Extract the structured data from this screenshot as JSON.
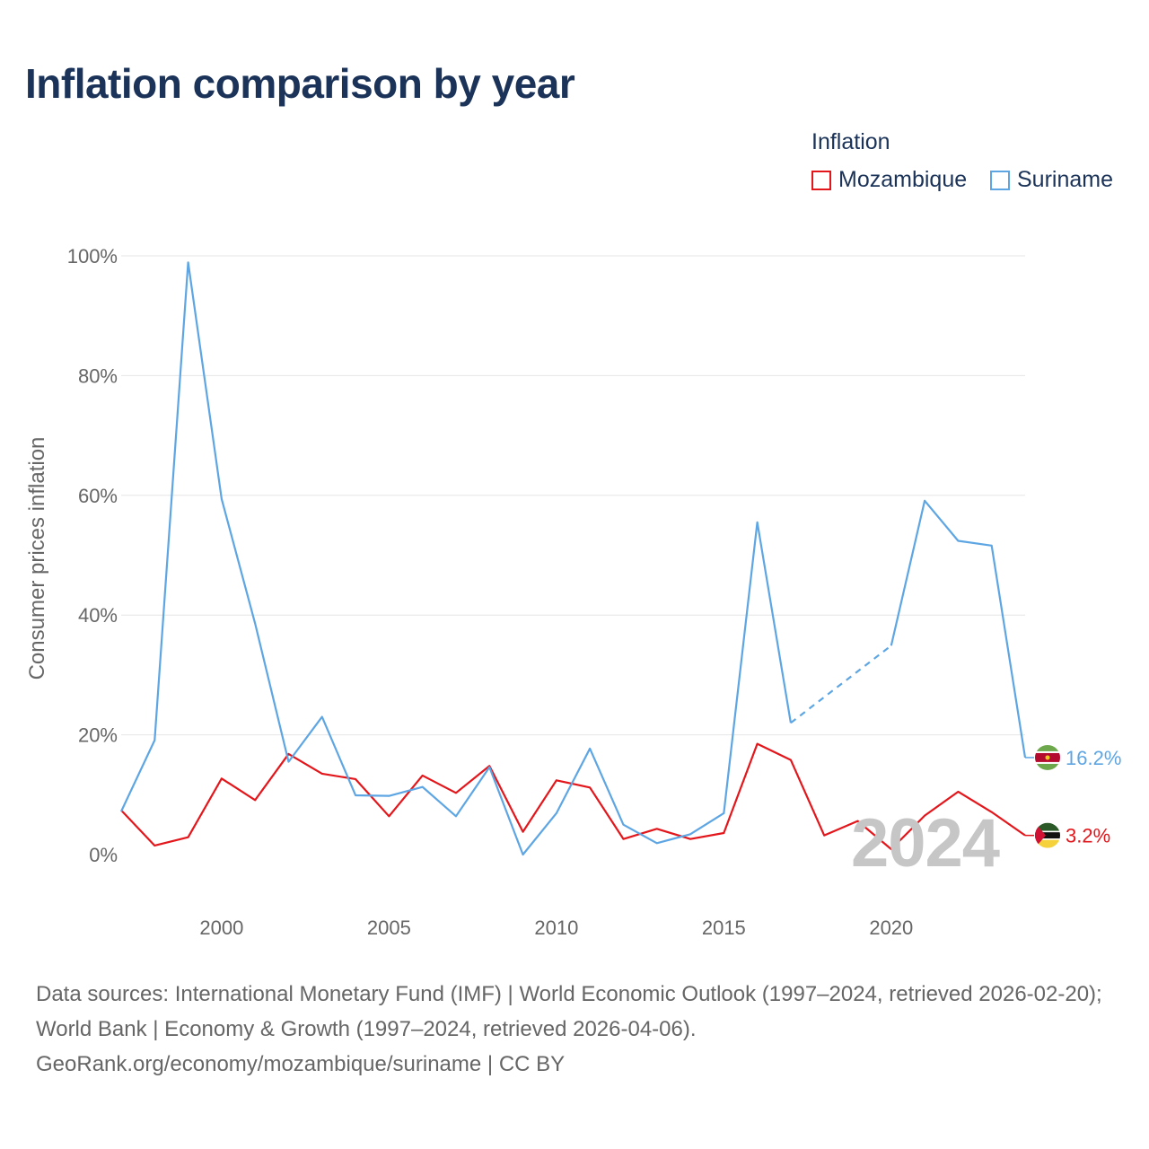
{
  "title": "Inflation comparison by year",
  "legend": {
    "title": "Inflation",
    "items": [
      {
        "label": "Mozambique",
        "color": "#e3161b"
      },
      {
        "label": "Suriname",
        "color": "#5ea6e3"
      }
    ]
  },
  "year_watermark": "2024",
  "footer": {
    "line1": "Data sources: International Monetary Fund (IMF) | World Economic Outlook (1997–2024, retrieved 2026-02-20); World Bank | Economy & Growth (1997–2024, retrieved 2026-04-06).",
    "line2": "GeoRank.org/economy/mozambique/suriname | CC BY"
  },
  "chart_data": {
    "type": "line",
    "title": "Inflation comparison by year",
    "xlabel": "",
    "ylabel": "Consumer prices inflation",
    "xlim": [
      1997,
      2024
    ],
    "ylim": [
      0,
      100
    ],
    "x_ticks": [
      2000,
      2005,
      2010,
      2015,
      2020
    ],
    "y_ticks": [
      0,
      20,
      40,
      60,
      80,
      100
    ],
    "y_tick_labels": [
      "0%",
      "20%",
      "40%",
      "60%",
      "80%",
      "100%"
    ],
    "grid": true,
    "legend_position": "top-right",
    "series": [
      {
        "name": "Mozambique",
        "color": "#e3161b",
        "x": [
          1997,
          1998,
          1999,
          2000,
          2001,
          2002,
          2003,
          2004,
          2005,
          2006,
          2007,
          2008,
          2009,
          2010,
          2011,
          2012,
          2013,
          2014,
          2015,
          2016,
          2017,
          2018,
          2019,
          2020,
          2021,
          2022,
          2023,
          2024
        ],
        "values": [
          7.4,
          1.5,
          2.9,
          12.7,
          9.1,
          16.8,
          13.5,
          12.6,
          6.4,
          13.2,
          10.3,
          14.8,
          3.8,
          12.4,
          11.2,
          2.6,
          4.3,
          2.6,
          3.6,
          18.5,
          15.8,
          3.2,
          5.6,
          0.9,
          6.5,
          10.5,
          7.1,
          3.2
        ],
        "end_label": "3.2%"
      },
      {
        "name": "Suriname",
        "color": "#5ea6e3",
        "x": [
          1997,
          1998,
          1999,
          2000,
          2001,
          2002,
          2003,
          2004,
          2005,
          2006,
          2007,
          2008,
          2009,
          2010,
          2011,
          2012,
          2013,
          2014,
          2015,
          2016,
          2017,
          2020,
          2021,
          2022,
          2023,
          2024
        ],
        "values": [
          7.2,
          19.1,
          98.9,
          59.4,
          38.6,
          15.5,
          23.0,
          9.9,
          9.8,
          11.3,
          6.4,
          14.6,
          0.0,
          6.9,
          17.7,
          5.0,
          1.9,
          3.4,
          6.9,
          55.5,
          22.0,
          34.9,
          59.1,
          52.4,
          51.6,
          16.2
        ],
        "dashed_gaps": [
          [
            2017,
            2020
          ]
        ],
        "end_label": "16.2%"
      }
    ]
  }
}
